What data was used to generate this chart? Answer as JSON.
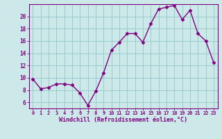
{
  "x": [
    0,
    1,
    2,
    3,
    4,
    5,
    6,
    7,
    8,
    9,
    10,
    11,
    12,
    13,
    14,
    15,
    16,
    17,
    18,
    19,
    20,
    21,
    22,
    23
  ],
  "y": [
    9.8,
    8.2,
    8.4,
    9.0,
    9.0,
    8.8,
    7.5,
    5.5,
    7.8,
    10.8,
    14.5,
    15.8,
    17.2,
    17.2,
    15.8,
    18.8,
    21.2,
    21.5,
    21.8,
    19.5,
    21.0,
    17.2,
    16.0,
    12.5
  ],
  "line_color": "#800080",
  "marker": "D",
  "marker_size": 2.5,
  "bg_color": "#cce8e8",
  "grid_color": "#99cccc",
  "xlabel": "Windchill (Refroidissement éolien,°C)",
  "xlabel_color": "#800080",
  "ylabel_ticks": [
    6,
    8,
    10,
    12,
    14,
    16,
    18,
    20
  ],
  "ylim": [
    5.0,
    22.0
  ],
  "xlim": [
    -0.5,
    23.5
  ],
  "xtick_labels": [
    "0",
    "1",
    "2",
    "3",
    "4",
    "5",
    "6",
    "7",
    "8",
    "9",
    "10",
    "11",
    "12",
    "13",
    "14",
    "15",
    "16",
    "17",
    "18",
    "19",
    "20",
    "21",
    "22",
    "23"
  ],
  "tick_color": "#800080",
  "spine_color": "#800080"
}
